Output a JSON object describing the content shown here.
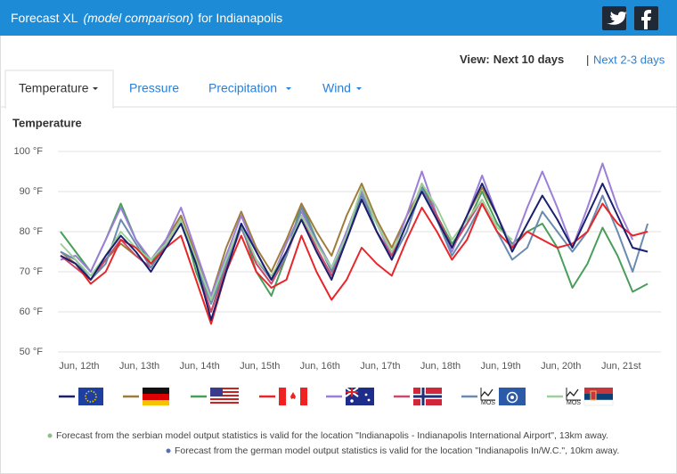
{
  "header": {
    "title": "Forecast XL",
    "subtitle": "(model comparison)",
    "location": "for Indianapolis"
  },
  "view": {
    "label": "View:",
    "current": "Next 10 days",
    "separator": "|",
    "alternative": "Next 2-3 days"
  },
  "tabs": [
    "Temperature",
    "Pressure",
    "Precipitation",
    "Wind"
  ],
  "chart_data": {
    "type": "line",
    "title": "Temperature",
    "categories": [
      null,
      "Jun, 12th",
      null,
      null,
      null,
      "Jun, 13th",
      null,
      null,
      null,
      "Jun, 14th",
      null,
      null,
      null,
      "Jun, 15th",
      null,
      null,
      null,
      "Jun, 16th",
      null,
      null,
      null,
      "Jun, 17th",
      null,
      null,
      null,
      "Jun, 18th",
      null,
      null,
      null,
      "Jun, 19th",
      null,
      null,
      null,
      "Jun, 20th",
      null,
      null,
      null,
      "Jun, 21st",
      null,
      null
    ],
    "ylim": [
      50,
      100
    ],
    "yticks": [
      {
        "value": 50,
        "label": "50 °F"
      },
      {
        "value": 60,
        "label": "60 °F"
      },
      {
        "value": 70,
        "label": "70 °F"
      },
      {
        "value": 80,
        "label": "80 °F"
      },
      {
        "value": 90,
        "label": "90 °F"
      },
      {
        "value": 100,
        "label": "100 °F"
      }
    ],
    "grid": true,
    "series": [
      {
        "color": "#4a9e5c",
        "values": [
          80,
          75,
          70,
          78,
          87,
          78,
          72,
          78,
          84,
          70,
          60,
          72,
          82,
          70,
          64,
          74,
          87,
          78,
          70,
          80,
          90,
          80,
          74,
          82,
          92,
          84,
          77,
          82,
          90,
          82,
          77,
          80,
          82,
          76,
          66,
          72,
          81,
          74,
          65,
          67
        ]
      },
      {
        "color": "#a07c3c",
        "values": [
          75,
          72,
          68,
          73,
          77,
          74,
          71,
          78,
          84,
          74,
          64,
          76,
          85,
          76,
          70,
          78,
          87,
          80,
          74,
          84,
          92,
          83,
          76,
          84,
          91,
          84,
          76,
          84,
          91,
          84,
          null,
          null,
          null,
          null,
          null,
          null,
          null,
          null,
          null,
          null
        ]
      },
      {
        "color": "#9b7fd8",
        "values": [
          73,
          74,
          70,
          78,
          86,
          78,
          73,
          78,
          86,
          75,
          64,
          74,
          84,
          75,
          68,
          77,
          85,
          78,
          71,
          80,
          90,
          82,
          74,
          84,
          95,
          84,
          75,
          84,
          94,
          84,
          76,
          86,
          95,
          86,
          76,
          86,
          97,
          86,
          78,
          null
        ]
      },
      {
        "color": "#c94a6a",
        "values": [
          74,
          71,
          68,
          73,
          78,
          74,
          71,
          77,
          83,
          72,
          60,
          71,
          81,
          72,
          67,
          74,
          84,
          76,
          69,
          78,
          88,
          80,
          74,
          82,
          91,
          84,
          76,
          82,
          88,
          null,
          null,
          null,
          null,
          null,
          null,
          null,
          null,
          null,
          null,
          null
        ]
      },
      {
        "color": "#6a8bb0",
        "values": [
          75,
          73,
          68,
          72,
          83,
          77,
          71,
          77,
          83,
          72,
          62,
          72,
          81,
          73,
          68,
          74,
          86,
          78,
          70,
          79,
          89,
          80,
          73,
          80,
          91,
          83,
          74,
          80,
          87,
          80,
          73,
          76,
          85,
          80,
          75,
          80,
          89,
          80,
          70,
          82
        ],
        "badge": "MOS"
      },
      {
        "color": "#9ccf9a",
        "values": [
          77,
          73,
          69,
          74,
          80,
          76,
          73,
          77,
          83,
          73,
          63,
          73,
          82,
          73,
          69,
          75,
          84,
          77,
          71,
          79,
          91,
          82,
          75,
          82,
          92,
          86,
          78,
          83,
          88,
          81,
          78,
          null,
          null,
          null,
          null,
          null,
          null,
          null,
          null,
          null
        ],
        "badge": "MOS"
      },
      {
        "color": "#e8262a",
        "values": [
          74,
          72,
          67,
          70,
          78,
          76,
          72,
          76,
          79,
          68,
          57,
          70,
          79,
          70,
          66,
          68,
          79,
          70,
          63,
          68,
          76,
          72,
          69,
          78,
          86,
          80,
          73,
          78,
          87,
          80,
          76,
          80,
          78,
          76,
          77,
          80,
          87,
          82,
          79,
          80
        ]
      },
      {
        "color": "#1a1f6e",
        "values": [
          74,
          72,
          68,
          74,
          79,
          75,
          70,
          76,
          82,
          72,
          58,
          70,
          82,
          75,
          68,
          75,
          83,
          75,
          68,
          78,
          88,
          80,
          73,
          82,
          90,
          83,
          76,
          84,
          92,
          84,
          75,
          82,
          89,
          83,
          76,
          84,
          92,
          84,
          76,
          75
        ]
      }
    ]
  },
  "notes": [
    "Forecast from the serbian model output statistics is valid for the location \"Indianapolis - Indianapolis International Airport\", 13km away.",
    "Forecast from the german model output statistics is valid for the location \"Indianapolis In/W.C.\", 10km away."
  ]
}
